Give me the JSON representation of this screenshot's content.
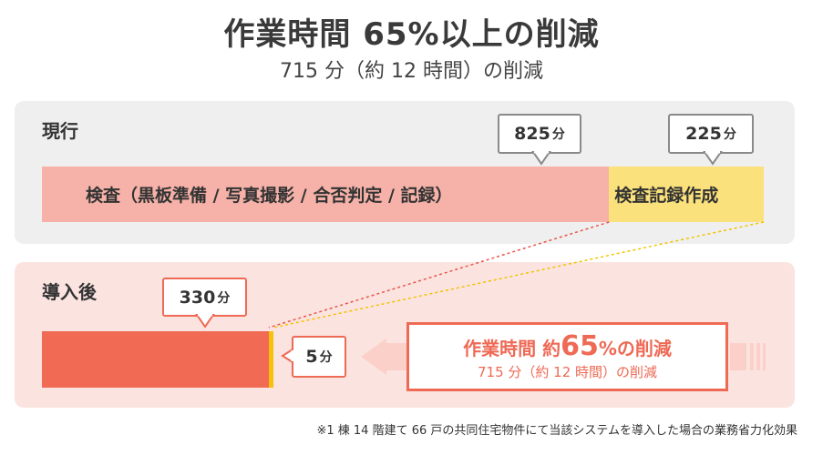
{
  "title": "作業時間 65%以上の削減",
  "subtitle": "715 分（約 12 時間）の削減",
  "current": {
    "label": "現行",
    "segments": [
      {
        "label": "検査（黒板準備 / 写真撮影 / 合否判定 / 記録）",
        "minutes": 825,
        "color": "#f6b2a8",
        "callout_value": "825",
        "callout_unit": "分"
      },
      {
        "label": "検査記録作成",
        "minutes": 225,
        "color": "#fae17b",
        "callout_value": "225",
        "callout_unit": "分"
      }
    ]
  },
  "after": {
    "label": "導入後",
    "segments": [
      {
        "minutes": 330,
        "color": "#f06a54",
        "callout_value": "330",
        "callout_unit": "分"
      },
      {
        "minutes": 5,
        "color": "#f4c20d",
        "callout_value": "5",
        "callout_unit": "分"
      }
    ]
  },
  "reduction": {
    "prefix": "作業時間 約",
    "percent": "65",
    "suffix_pct": "%",
    "suffix": "の削減",
    "detail": "715 分（約 12 時間）の削減"
  },
  "footnote": "※1 棟 14 階建て 66 戸の共同住宅物件にて当該システムを導入した場合の業務省力化効果",
  "chart_data": {
    "type": "bar",
    "categories": [
      "現行",
      "導入後"
    ],
    "series": [
      {
        "name": "検査（黒板準備 / 写真撮影 / 合否判定 / 記録）",
        "values": [
          825,
          330
        ]
      },
      {
        "name": "検査記録作成",
        "values": [
          225,
          5
        ]
      }
    ],
    "unit": "分",
    "title": "作業時間 65%以上の削減",
    "subtitle": "715 分（約 12 時間）の削減"
  }
}
